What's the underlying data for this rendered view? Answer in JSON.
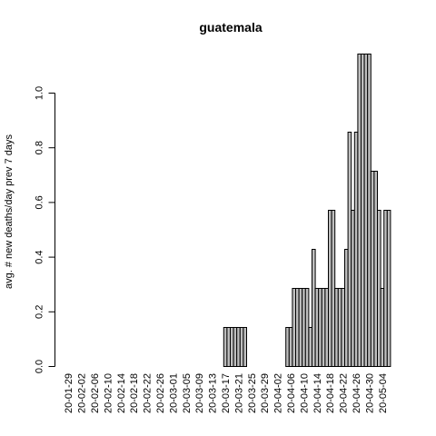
{
  "chart_data": {
    "type": "bar",
    "title": "guatemala",
    "xlabel": "",
    "ylabel": "avg. # new deaths/day prev  7  days",
    "ylim": [
      0,
      1.142857
    ],
    "yticks": [
      0.0,
      0.2,
      0.4,
      0.6,
      0.8,
      1.0
    ],
    "ytick_labels": [
      "0.0",
      "0.2",
      "0.4",
      "0.6",
      "0.8",
      "1.0"
    ],
    "x_tick_labels": [
      "20-01-29",
      "20-02-02",
      "20-02-06",
      "20-02-10",
      "20-02-14",
      "20-02-18",
      "20-02-22",
      "20-02-26",
      "20-03-01",
      "20-03-05",
      "20-03-09",
      "20-03-13",
      "20-03-17",
      "20-03-21",
      "20-03-25",
      "20-03-29",
      "20-04-02",
      "20-04-06",
      "20-04-10",
      "20-04-14",
      "20-04-18",
      "20-04-22",
      "20-04-26",
      "20-04-30",
      "20-05-04"
    ],
    "x_start": "20-01-29",
    "x_step_days": 1,
    "values": [
      0,
      0,
      0,
      0,
      0,
      0,
      0,
      0,
      0,
      0,
      0,
      0,
      0,
      0,
      0,
      0,
      0,
      0,
      0,
      0,
      0,
      0,
      0,
      0,
      0,
      0,
      0,
      0,
      0,
      0,
      0,
      0,
      0,
      0,
      0,
      0,
      0,
      0,
      0,
      0,
      0,
      0,
      0,
      0,
      0,
      0,
      0,
      0,
      0.142857,
      0.142857,
      0.142857,
      0.142857,
      0.142857,
      0.142857,
      0.142857,
      0,
      0,
      0,
      0,
      0,
      0,
      0,
      0,
      0,
      0,
      0,
      0,
      0.142857,
      0.142857,
      0.285714,
      0.285714,
      0.285714,
      0.285714,
      0.285714,
      0.142857,
      0.428571,
      0.285714,
      0.285714,
      0.285714,
      0.285714,
      0.571429,
      0.571429,
      0.285714,
      0.285714,
      0.285714,
      0.428571,
      0.857143,
      0.571429,
      0.857143,
      1.142857,
      1.142857,
      1.142857,
      1.142857,
      0.714286,
      0.714286,
      0.571429,
      0.285714,
      0.571429,
      0.571429
    ]
  }
}
